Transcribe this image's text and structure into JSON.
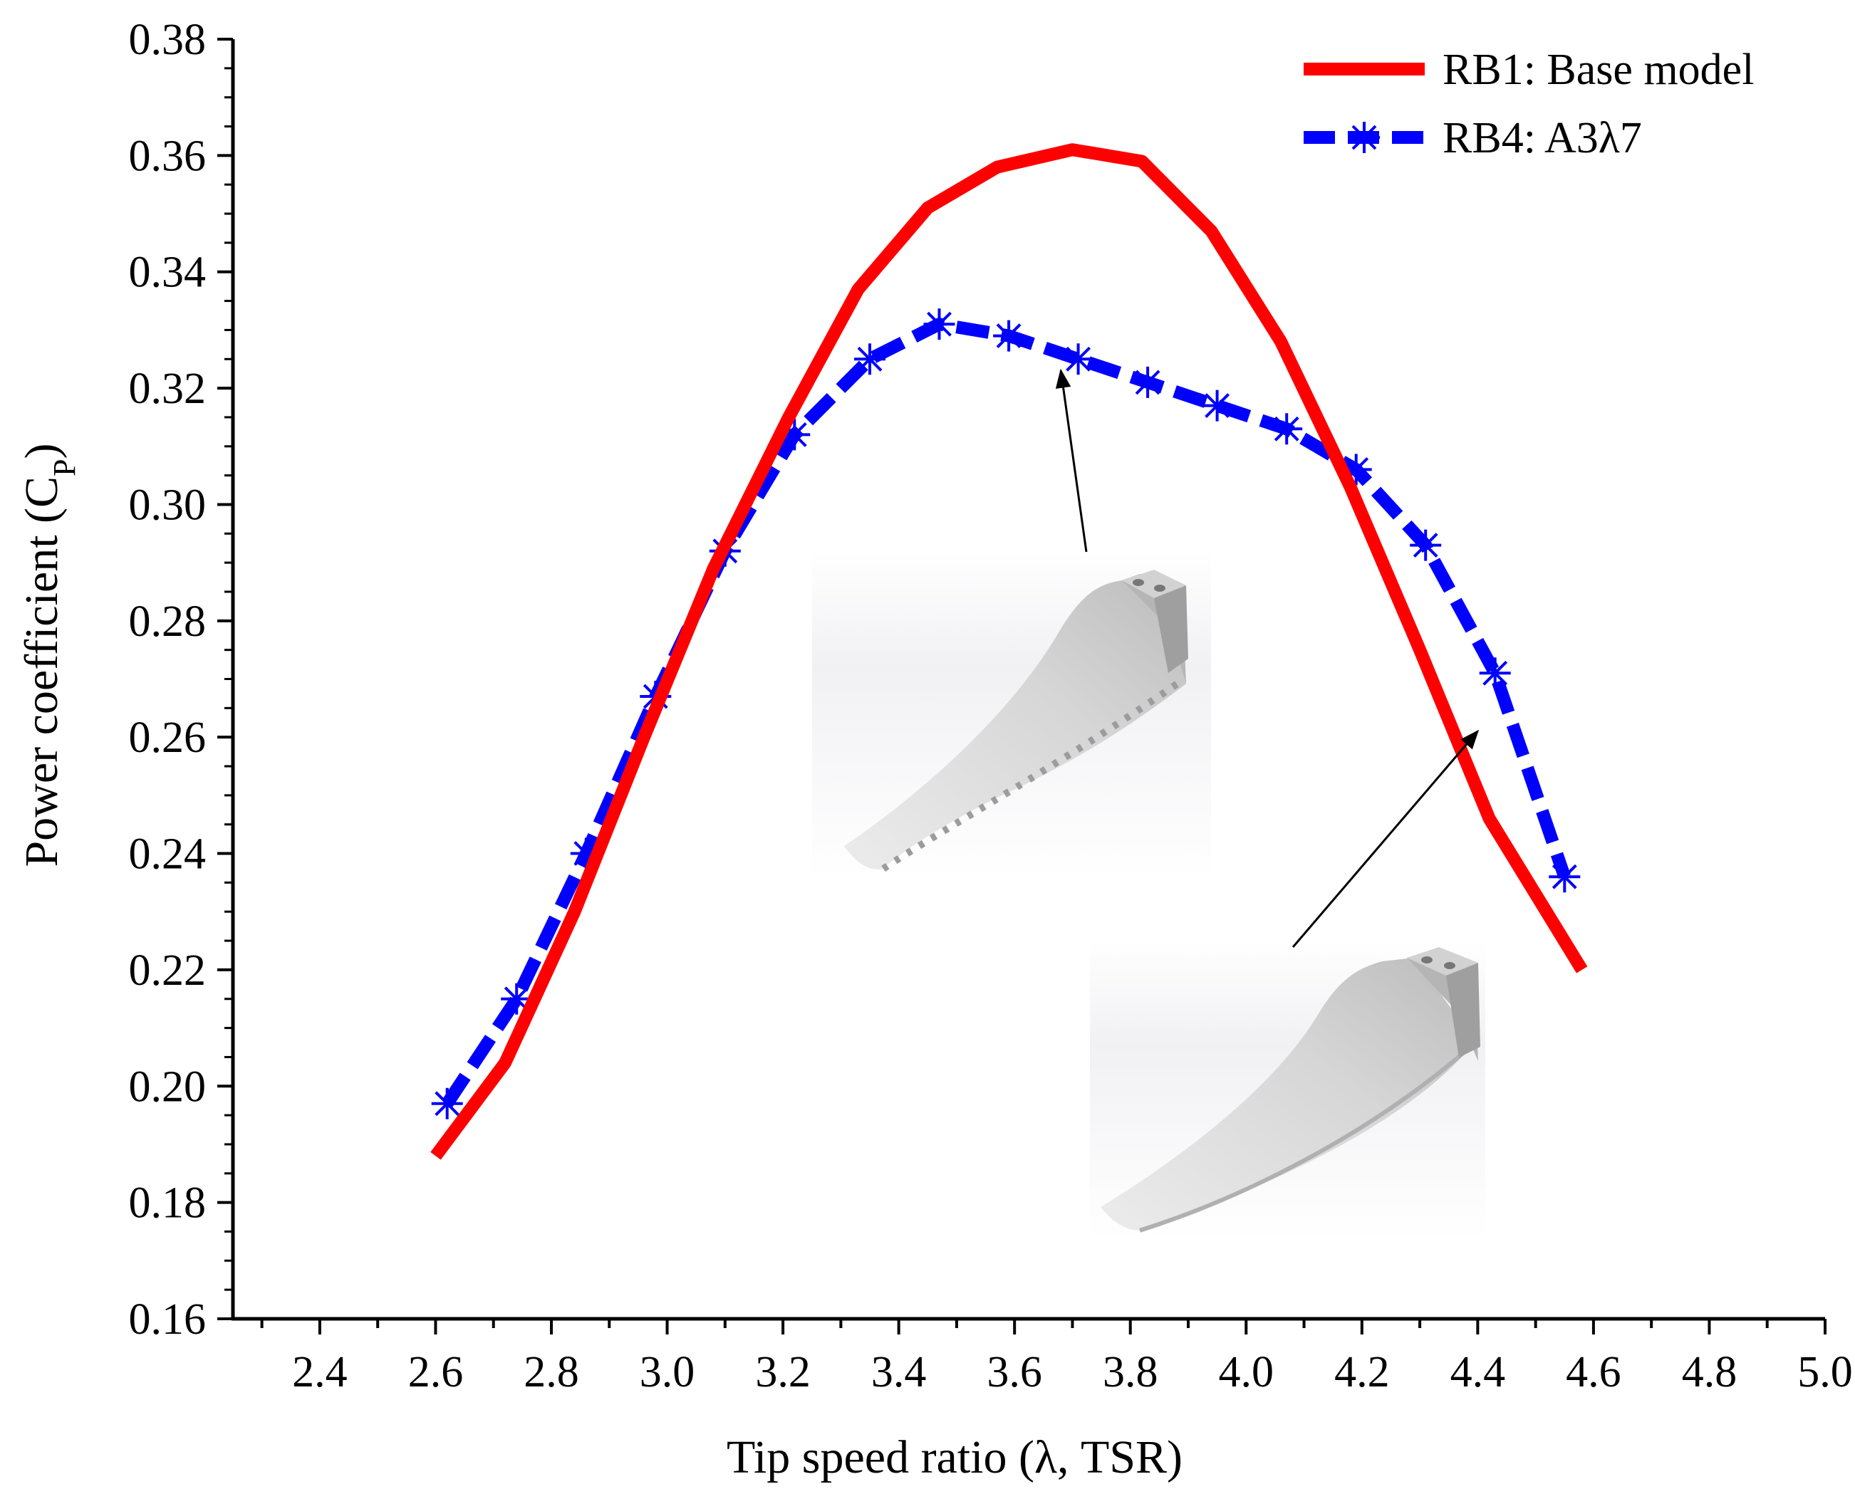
{
  "chart_data": {
    "type": "line",
    "title": "",
    "xlabel": "Tip speed ratio (λ, TSR)",
    "ylabel_main": "Power coefficient (C",
    "ylabel_sub": "P",
    "ylabel_close": ")",
    "xlim": [
      2.25,
      5.0
    ],
    "ylim": [
      0.16,
      0.38
    ],
    "x_ticks": [
      "2.4",
      "2.6",
      "2.8",
      "3.0",
      "3.2",
      "3.4",
      "3.6",
      "3.8",
      "4.0",
      "4.2",
      "4.4",
      "4.6",
      "4.8",
      "5.0"
    ],
    "y_ticks": [
      "0.16",
      "0.18",
      "0.20",
      "0.22",
      "0.24",
      "0.26",
      "0.28",
      "0.30",
      "0.32",
      "0.34",
      "0.36",
      "0.38"
    ],
    "legend_position": "top-right",
    "series": [
      {
        "name": "RB1: Base model",
        "color": "#ff0000",
        "style": "solid",
        "marker": "none",
        "x": [
          2.6,
          2.72,
          2.84,
          2.96,
          3.08,
          3.21,
          3.33,
          3.45,
          3.57,
          3.7,
          3.82,
          3.94,
          4.06,
          4.18,
          4.3,
          4.42,
          4.58
        ],
        "values": [
          0.188,
          0.204,
          0.23,
          0.26,
          0.289,
          0.315,
          0.337,
          0.351,
          0.358,
          0.361,
          0.359,
          0.347,
          0.328,
          0.303,
          0.275,
          0.246,
          0.22
        ]
      },
      {
        "name": "RB4: A3λ7",
        "color": "#0000ff",
        "style": "dashed",
        "marker": "asterisk",
        "x": [
          2.62,
          2.74,
          2.86,
          2.98,
          3.1,
          3.22,
          3.35,
          3.47,
          3.59,
          3.71,
          3.83,
          3.95,
          4.07,
          4.19,
          4.31,
          4.43,
          4.55
        ],
        "values": [
          0.197,
          0.215,
          0.24,
          0.267,
          0.292,
          0.312,
          0.325,
          0.331,
          0.329,
          0.325,
          0.321,
          0.317,
          0.313,
          0.306,
          0.293,
          0.271,
          0.236
        ]
      }
    ],
    "annotations": [
      {
        "label": "serrated-blade-image",
        "points_to_series": "RB4: A3λ7",
        "target_x": 3.68,
        "target_y": 0.324
      },
      {
        "label": "base-blade-image",
        "points_to_series": "RB1: Base model",
        "target_x": 4.4,
        "target_y": 0.262
      }
    ]
  }
}
